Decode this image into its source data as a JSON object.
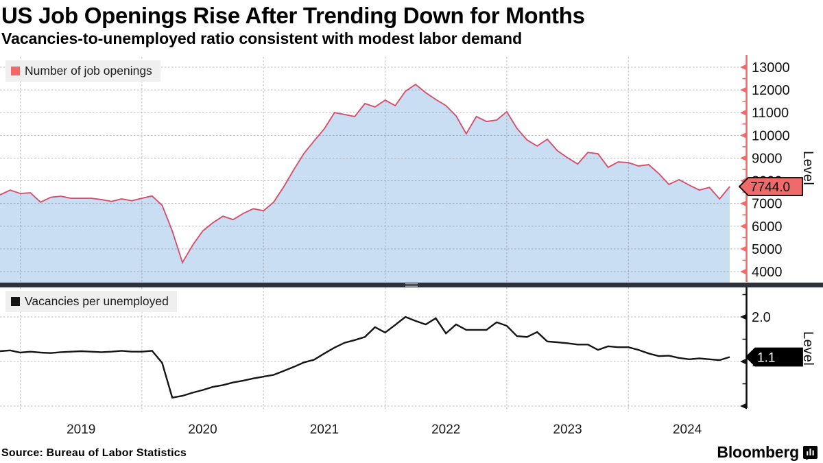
{
  "header": {
    "title": "US Job Openings Rise After Trending Down for Months",
    "subtitle": "Vacancies-to-unemployed ratio consistent with modest labor demand"
  },
  "footer": {
    "source": "Source: Bureau of Labor Statistics",
    "brand": "Bloomberg",
    "brand_icon": "bloomberg-terminal-icon"
  },
  "x_axis": {
    "year_labels": [
      "2019",
      "2020",
      "2021",
      "2022",
      "2023",
      "2024"
    ]
  },
  "top_panel": {
    "legend": "Number of job openings",
    "axis_label": "Level",
    "last_value_label": "7744.0"
  },
  "bottom_panel": {
    "legend": "Vacancies per unemployed",
    "axis_label": "Level",
    "last_value_label": "1.1"
  },
  "colors": {
    "openings_line": "#d4506b",
    "openings_fill": "#c9ddf3",
    "openings_axis": "#f16a6a",
    "tag_top_bg": "#f16a6a",
    "ratio_line": "#141414",
    "ratio_axis": "#111111",
    "tag_bottom_bg": "#000000",
    "legend_bg": "#efefef",
    "grid": "#6a6a6a",
    "divider": "#2e3238"
  },
  "chart_data": [
    {
      "type": "area",
      "title": "Number of job openings",
      "ylabel": "Level",
      "ylim": [
        3500,
        13550
      ],
      "grid": true,
      "legend_position": "top-left",
      "yticks": [
        4000,
        5000,
        6000,
        7000,
        8000,
        9000,
        10000,
        11000,
        12000,
        13000
      ],
      "ytick_labels": [
        "4000",
        "5000",
        "6000",
        "7000",
        "8000",
        "9000",
        "10000",
        "11000",
        "12000",
        "13000"
      ],
      "last_value": 7744.0,
      "last_value_label": "7744.0",
      "x": [
        "2018-11",
        "2018-12",
        "2019-01",
        "2019-02",
        "2019-03",
        "2019-04",
        "2019-05",
        "2019-06",
        "2019-07",
        "2019-08",
        "2019-09",
        "2019-10",
        "2019-11",
        "2019-12",
        "2020-01",
        "2020-02",
        "2020-03",
        "2020-04",
        "2020-05",
        "2020-06",
        "2020-07",
        "2020-08",
        "2020-09",
        "2020-10",
        "2020-11",
        "2020-12",
        "2021-01",
        "2021-02",
        "2021-03",
        "2021-04",
        "2021-05",
        "2021-06",
        "2021-07",
        "2021-08",
        "2021-09",
        "2021-10",
        "2021-11",
        "2021-12",
        "2022-01",
        "2022-02",
        "2022-03",
        "2022-04",
        "2022-05",
        "2022-06",
        "2022-07",
        "2022-08",
        "2022-09",
        "2022-10",
        "2022-11",
        "2022-12",
        "2023-01",
        "2023-02",
        "2023-03",
        "2023-04",
        "2023-05",
        "2023-06",
        "2023-07",
        "2023-08",
        "2023-09",
        "2023-10",
        "2023-11",
        "2023-12",
        "2024-01",
        "2024-02",
        "2024-03",
        "2024-04",
        "2024-05",
        "2024-06",
        "2024-07",
        "2024-08",
        "2024-09",
        "2024-10",
        "2024-11"
      ],
      "values": [
        7380,
        7590,
        7440,
        7470,
        7060,
        7270,
        7320,
        7230,
        7230,
        7230,
        7170,
        7090,
        7200,
        7120,
        7230,
        7330,
        6920,
        5790,
        4400,
        5160,
        5790,
        6150,
        6440,
        6290,
        6560,
        6770,
        6680,
        7060,
        7740,
        8500,
        9210,
        9760,
        10290,
        11000,
        10920,
        10830,
        11400,
        11250,
        11550,
        11310,
        11940,
        12245,
        11880,
        11580,
        11310,
        10860,
        10070,
        10830,
        10610,
        10670,
        11040,
        10310,
        9800,
        9530,
        9830,
        9320,
        9010,
        8740,
        9250,
        9190,
        8590,
        8830,
        8800,
        8650,
        8710,
        8320,
        7840,
        8050,
        7810,
        7590,
        7710,
        7200,
        7744
      ]
    },
    {
      "type": "line",
      "title": "Vacancies per unemployed",
      "ylabel": "Level",
      "ylim": [
        -0.2,
        2.66
      ],
      "grid": true,
      "legend_position": "top-left",
      "yticks": [
        0,
        0.5,
        1,
        1.5,
        2,
        2.5
      ],
      "ytick_labels": [
        "",
        "",
        "1.0",
        "",
        "2.0",
        ""
      ],
      "last_value": 1.1,
      "last_value_label": "1.1",
      "x": [
        "2018-11",
        "2018-12",
        "2019-01",
        "2019-02",
        "2019-03",
        "2019-04",
        "2019-05",
        "2019-06",
        "2019-07",
        "2019-08",
        "2019-09",
        "2019-10",
        "2019-11",
        "2019-12",
        "2020-01",
        "2020-02",
        "2020-03",
        "2020-04",
        "2020-05",
        "2020-06",
        "2020-07",
        "2020-08",
        "2020-09",
        "2020-10",
        "2020-11",
        "2020-12",
        "2021-01",
        "2021-02",
        "2021-03",
        "2021-04",
        "2021-05",
        "2021-06",
        "2021-07",
        "2021-08",
        "2021-09",
        "2021-10",
        "2021-11",
        "2021-12",
        "2022-01",
        "2022-02",
        "2022-03",
        "2022-04",
        "2022-05",
        "2022-06",
        "2022-07",
        "2022-08",
        "2022-09",
        "2022-10",
        "2022-11",
        "2022-12",
        "2023-01",
        "2023-02",
        "2023-03",
        "2023-04",
        "2023-05",
        "2023-06",
        "2023-07",
        "2023-08",
        "2023-09",
        "2023-10",
        "2023-11",
        "2023-12",
        "2024-01",
        "2024-02",
        "2024-03",
        "2024-04",
        "2024-05",
        "2024-06",
        "2024-07",
        "2024-08",
        "2024-09",
        "2024-10",
        "2024-11"
      ],
      "values": [
        1.23,
        1.25,
        1.2,
        1.22,
        1.2,
        1.19,
        1.21,
        1.22,
        1.23,
        1.22,
        1.21,
        1.22,
        1.24,
        1.22,
        1.22,
        1.24,
        0.97,
        0.19,
        0.23,
        0.3,
        0.36,
        0.43,
        0.47,
        0.53,
        0.57,
        0.62,
        0.66,
        0.7,
        0.79,
        0.88,
        0.98,
        1.04,
        1.18,
        1.31,
        1.42,
        1.48,
        1.55,
        1.77,
        1.65,
        1.82,
        2.0,
        1.91,
        1.83,
        1.97,
        1.63,
        1.83,
        1.71,
        1.71,
        1.71,
        1.88,
        1.8,
        1.57,
        1.55,
        1.66,
        1.45,
        1.43,
        1.41,
        1.38,
        1.38,
        1.26,
        1.34,
        1.32,
        1.32,
        1.26,
        1.18,
        1.12,
        1.13,
        1.08,
        1.05,
        1.07,
        1.05,
        1.03,
        1.1
      ]
    }
  ]
}
